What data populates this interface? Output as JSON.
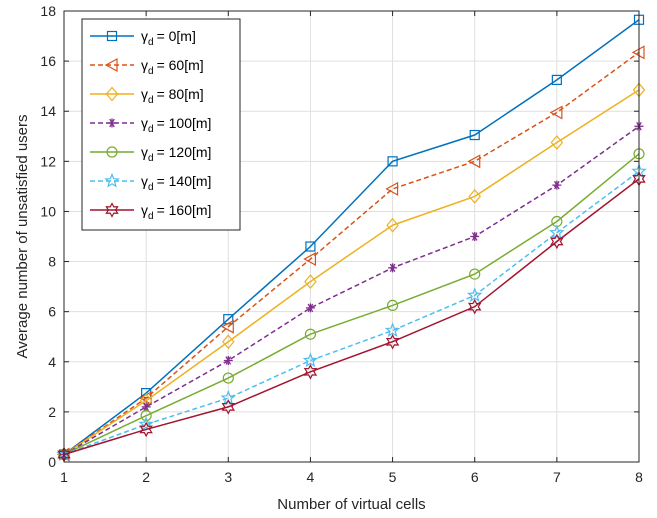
{
  "chart_data": {
    "type": "line",
    "title": "",
    "xlabel": "Number of virtual cells",
    "ylabel": "Average number of unsatisfied users",
    "x": [
      1,
      2,
      3,
      4,
      5,
      6,
      7,
      8
    ],
    "xlim": [
      1,
      8
    ],
    "ylim": [
      0,
      18
    ],
    "xticks": [
      1,
      2,
      3,
      4,
      5,
      6,
      7,
      8
    ],
    "yticks": [
      0,
      2,
      4,
      6,
      8,
      10,
      12,
      14,
      16,
      18
    ],
    "grid": true,
    "legend_position": "top-left",
    "series": [
      {
        "name": "= 0[m]",
        "symbol": "γ",
        "subscript": "d",
        "color": "#0072BD",
        "dash": "solid",
        "marker": "square",
        "values": [
          0.3,
          2.75,
          5.7,
          8.6,
          12.0,
          13.05,
          15.25,
          17.65
        ]
      },
      {
        "name": "= 60[m]",
        "symbol": "γ",
        "subscript": "d",
        "color": "#D95319",
        "dash": "dashed",
        "marker": "triangle-left",
        "values": [
          0.3,
          2.55,
          5.4,
          8.1,
          10.9,
          12.0,
          13.95,
          16.35
        ]
      },
      {
        "name": "= 80[m]",
        "symbol": "γ",
        "subscript": "d",
        "color": "#EDB120",
        "dash": "solid",
        "marker": "diamond",
        "values": [
          0.3,
          2.45,
          4.8,
          7.2,
          9.45,
          10.6,
          12.75,
          14.85
        ]
      },
      {
        "name": "= 100[m]",
        "symbol": "γ",
        "subscript": "d",
        "color": "#7E2F8E",
        "dash": "dashed",
        "marker": "asterisk",
        "values": [
          0.3,
          2.2,
          4.05,
          6.15,
          7.75,
          9.0,
          11.05,
          13.4
        ]
      },
      {
        "name": "= 120[m]",
        "symbol": "γ",
        "subscript": "d",
        "color": "#77AC30",
        "dash": "solid",
        "marker": "circle",
        "values": [
          0.3,
          1.85,
          3.35,
          5.1,
          6.25,
          7.5,
          9.6,
          12.3
        ]
      },
      {
        "name": "= 140[m]",
        "symbol": "γ",
        "subscript": "d",
        "color": "#4DBEEE",
        "dash": "dashed",
        "marker": "pentagram",
        "values": [
          0.3,
          1.5,
          2.55,
          4.05,
          5.25,
          6.65,
          9.15,
          11.6
        ]
      },
      {
        "name": "= 160[m]",
        "symbol": "γ",
        "subscript": "d",
        "color": "#A2142F",
        "dash": "solid",
        "marker": "hexagram",
        "values": [
          0.3,
          1.3,
          2.2,
          3.6,
          4.8,
          6.2,
          8.8,
          11.3
        ]
      }
    ]
  }
}
